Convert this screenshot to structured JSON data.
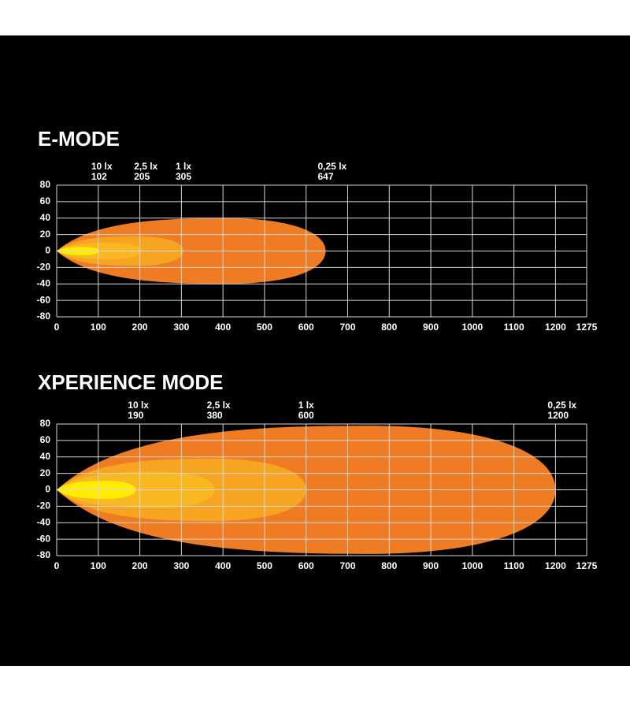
{
  "chart_data": [
    {
      "type": "beam",
      "title": "E-MODE",
      "series": [
        {
          "name": "10 lx",
          "reach": 102,
          "half_width": 5,
          "color": "#ffec00"
        },
        {
          "name": "2,5 lx",
          "reach": 205,
          "half_width": 10,
          "color": "#f9b81f"
        },
        {
          "name": "1 lx",
          "reach": 305,
          "half_width": 18,
          "color": "#f6a421"
        },
        {
          "name": "0,25 lx",
          "reach": 647,
          "half_width": 40,
          "color": "#ef7c22"
        }
      ],
      "xlim": [
        0,
        1275
      ],
      "xticks": [
        0,
        100,
        200,
        300,
        400,
        500,
        600,
        700,
        800,
        900,
        1000,
        1100,
        1200,
        1275
      ],
      "ylim": [
        -80,
        80
      ],
      "yticks": [
        80,
        60,
        40,
        20,
        0,
        -20,
        -40,
        -60,
        -80
      ],
      "grid": true
    },
    {
      "type": "beam",
      "title": "XPERIENCE MODE",
      "series": [
        {
          "name": "10 lx",
          "reach": 190,
          "half_width": 11,
          "color": "#ffec00"
        },
        {
          "name": "2,5 lx",
          "reach": 380,
          "half_width": 22,
          "color": "#f9b81f"
        },
        {
          "name": "1 lx",
          "reach": 600,
          "half_width": 38,
          "color": "#f6a421"
        },
        {
          "name": "0,25 lx",
          "reach": 1200,
          "half_width": 78,
          "color": "#ef7c22"
        }
      ],
      "xlim": [
        0,
        1275
      ],
      "xticks": [
        0,
        100,
        200,
        300,
        400,
        500,
        600,
        700,
        800,
        900,
        1000,
        1100,
        1200,
        1275
      ],
      "ylim": [
        -80,
        80
      ],
      "yticks": [
        80,
        60,
        40,
        20,
        0,
        -20,
        -40,
        -60,
        -80
      ],
      "grid": true
    }
  ]
}
